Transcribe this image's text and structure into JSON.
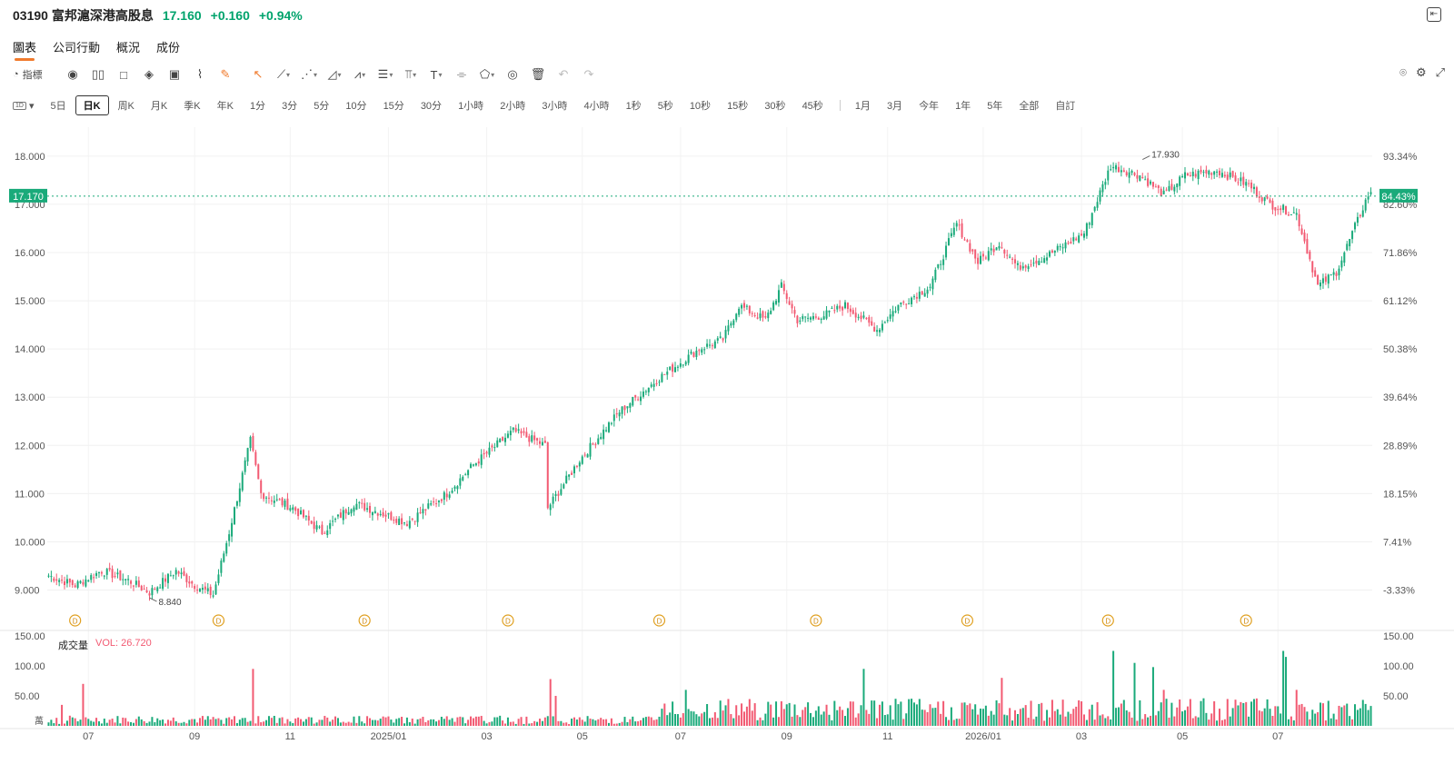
{
  "header": {
    "code_name": "03190 富邦滬深港高股息",
    "price": "17.160",
    "change": "+0.160",
    "change_pct": "+0.94%",
    "collapse_icon": "collapse-panel-icon"
  },
  "tabs": [
    {
      "label": "圖表",
      "active": true
    },
    {
      "label": "公司行動"
    },
    {
      "label": "概況"
    },
    {
      "label": "成份"
    }
  ],
  "toolbar": {
    "indicator_label": "指標",
    "icons": [
      "replay-icon",
      "candle-type-icon",
      "rectangle-icon",
      "layers-icon",
      "compare-icon",
      "draw-style-icon",
      "highlighter-icon",
      "pointer-icon",
      "trendline-icon",
      "multi-line-icon",
      "triangle-draw-icon",
      "pattern-icon",
      "fib-icon",
      "measure-icon",
      "text-icon",
      "brush-icon",
      "shape-icon",
      "eye-icon",
      "trash-icon",
      "undo-icon",
      "redo-icon"
    ],
    "right_icons": [
      "camera-icon",
      "settings-icon",
      "fullscreen-icon"
    ]
  },
  "periods": {
    "selector": "1D",
    "items": [
      {
        "label": "5日"
      },
      {
        "label": "日K",
        "active": true
      },
      {
        "label": "周K"
      },
      {
        "label": "月K"
      },
      {
        "label": "季K"
      },
      {
        "label": "年K"
      },
      {
        "label": "1分"
      },
      {
        "label": "3分"
      },
      {
        "label": "5分"
      },
      {
        "label": "10分"
      },
      {
        "label": "15分"
      },
      {
        "label": "30分"
      },
      {
        "label": "1小時"
      },
      {
        "label": "2小時"
      },
      {
        "label": "3小時"
      },
      {
        "label": "4小時"
      },
      {
        "label": "1秒"
      },
      {
        "label": "5秒"
      },
      {
        "label": "10秒"
      },
      {
        "label": "15秒"
      },
      {
        "label": "30秒"
      },
      {
        "label": "45秒"
      }
    ],
    "ranges": [
      {
        "label": "1月"
      },
      {
        "label": "3月"
      },
      {
        "label": "今年"
      },
      {
        "label": "1年"
      },
      {
        "label": "5年"
      },
      {
        "label": "全部"
      },
      {
        "label": "自訂"
      }
    ]
  },
  "chart_data": {
    "type": "candlestick",
    "y_ticks": [
      "18.000",
      "17.000",
      "16.000",
      "15.000",
      "14.000",
      "13.000",
      "12.000",
      "11.000",
      "10.000",
      "9.000"
    ],
    "y_tick_values": [
      18,
      17,
      16,
      15,
      14,
      13,
      12,
      11,
      10,
      9
    ],
    "pct_ticks": [
      "93.34%",
      "82.60%",
      "71.86%",
      "61.12%",
      "50.38%",
      "39.64%",
      "28.89%",
      "18.15%",
      "7.41%",
      "-3.33%"
    ],
    "ylim": [
      8.2,
      18.6
    ],
    "x_ticks": [
      "07",
      "09",
      "11",
      "2025/01",
      "03",
      "05",
      "07",
      "09",
      "11",
      "2026/01",
      "03",
      "05",
      "07"
    ],
    "x_tick_index": [
      15,
      55,
      91,
      128,
      165,
      201,
      238,
      278,
      316,
      352,
      389,
      427,
      463
    ],
    "last_price_label": "17.170",
    "last_price_value": 17.17,
    "last_pct_label": "84.43%",
    "high_label": "17.930",
    "high_value": 17.93,
    "high_index": 412,
    "low_label": "8.840",
    "low_value": 8.84,
    "low_index": 38,
    "dividend_marker": "D",
    "dividend_index": [
      10,
      64,
      119,
      173,
      230,
      289,
      346,
      399,
      451
    ],
    "close_anchors": [
      [
        0,
        9.3
      ],
      [
        10,
        9.1
      ],
      [
        20,
        9.4
      ],
      [
        30,
        9.2
      ],
      [
        38,
        8.95
      ],
      [
        48,
        9.4
      ],
      [
        55,
        9.1
      ],
      [
        62,
        8.9
      ],
      [
        68,
        10.2
      ],
      [
        76,
        12.1
      ],
      [
        80,
        11.0
      ],
      [
        92,
        10.7
      ],
      [
        103,
        10.2
      ],
      [
        115,
        10.8
      ],
      [
        135,
        10.4
      ],
      [
        150,
        11.0
      ],
      [
        160,
        11.6
      ],
      [
        175,
        12.3
      ],
      [
        187,
        12.0
      ],
      [
        188,
        10.7
      ],
      [
        200,
        11.7
      ],
      [
        215,
        12.7
      ],
      [
        230,
        13.4
      ],
      [
        245,
        14.0
      ],
      [
        254,
        14.2
      ],
      [
        260,
        14.9
      ],
      [
        270,
        14.6
      ],
      [
        276,
        15.3
      ],
      [
        282,
        14.6
      ],
      [
        292,
        14.7
      ],
      [
        300,
        14.9
      ],
      [
        312,
        14.4
      ],
      [
        320,
        14.9
      ],
      [
        332,
        15.3
      ],
      [
        342,
        16.6
      ],
      [
        350,
        15.8
      ],
      [
        358,
        16.2
      ],
      [
        365,
        15.7
      ],
      [
        375,
        15.9
      ],
      [
        390,
        16.4
      ],
      [
        400,
        17.8
      ],
      [
        411,
        17.6
      ],
      [
        420,
        17.2
      ],
      [
        428,
        17.6
      ],
      [
        440,
        17.7
      ],
      [
        452,
        17.4
      ],
      [
        460,
        17.0
      ],
      [
        470,
        16.8
      ],
      [
        478,
        15.3
      ],
      [
        485,
        15.6
      ],
      [
        497,
        17.2
      ]
    ],
    "volume": {
      "label": "成交量",
      "vol_text": "VOL: 26.720",
      "y_ticks": [
        "150.00",
        "100.00",
        "50.00"
      ],
      "y_tick_values": [
        150,
        100,
        50
      ],
      "ylim": [
        0,
        150
      ],
      "unit": "萬",
      "spikes": [
        [
          5,
          35
        ],
        [
          13,
          70
        ],
        [
          77,
          95
        ],
        [
          189,
          78
        ],
        [
          191,
          50
        ],
        [
          240,
          60
        ],
        [
          307,
          95
        ],
        [
          359,
          80
        ],
        [
          401,
          125
        ],
        [
          409,
          105
        ],
        [
          416,
          98
        ],
        [
          420,
          60
        ],
        [
          465,
          125
        ],
        [
          466,
          115
        ],
        [
          470,
          60
        ]
      ]
    },
    "up_color": "#1aaa7a",
    "down_color": "#f25a72",
    "n_bars": 499
  }
}
